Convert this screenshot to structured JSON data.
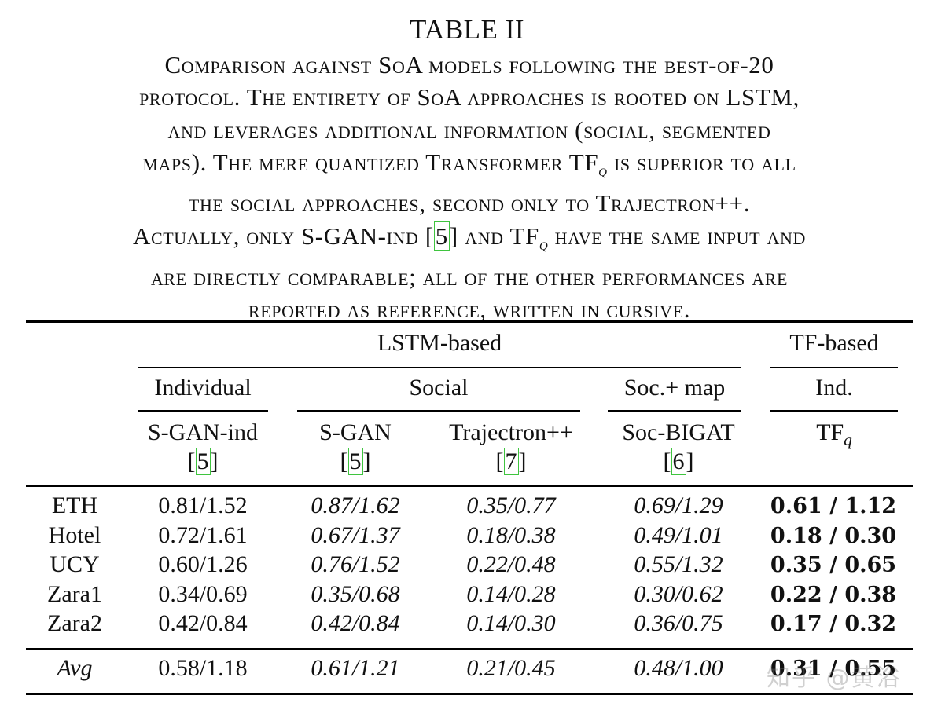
{
  "caption": {
    "title": "TABLE II",
    "lines": [
      "Comparison against SoA models following the best-of-20",
      "protocol. The entirety of SoA approaches is rooted on LSTM,",
      "and leverages additional information (social, segmented",
      "maps). The mere quantized Transformer TF_q is superior to all",
      "the social approaches, second only to Trajectron++.",
      "Actually, only S-GAN-ind [5] and TF_q have the same input and",
      "are directly comparable; all of the other performances are",
      "reported as reference, written in cursive."
    ],
    "line3_prefix": "maps). The mere quantized Transformer TF",
    "line3_suffix": " is superior to all",
    "line5_prefix": "Actually, only S-GAN-ind ",
    "line5_ref": "5",
    "line5_mid": " and TF",
    "line5_suffix": " have the same input and",
    "subscript": "q"
  },
  "header": {
    "group_lstm": "LSTM-based",
    "group_tf": "TF-based",
    "sub_individual": "Individual",
    "sub_social": "Social",
    "sub_socmap": "Soc.+ map",
    "sub_ind": "Ind.",
    "models": [
      {
        "name": "S-GAN-ind",
        "ref": "5"
      },
      {
        "name": "S-GAN",
        "ref": "5"
      },
      {
        "name": "Trajectron++",
        "ref": "7"
      },
      {
        "name": "Soc-BIGAT",
        "ref": "6"
      }
    ],
    "tf_model": "TF",
    "tf_sub": "q"
  },
  "rows": [
    {
      "label": "ETH",
      "values": [
        "0.81/1.52",
        "0.87/1.62",
        "0.35/0.77",
        "0.69/1.29",
        "0.61 / 1.12"
      ]
    },
    {
      "label": "Hotel",
      "values": [
        "0.72/1.61",
        "0.67/1.37",
        "0.18/0.38",
        "0.49/1.01",
        "0.18 / 0.30"
      ]
    },
    {
      "label": "UCY",
      "values": [
        "0.60/1.26",
        "0.76/1.52",
        "0.22/0.48",
        "0.55/1.32",
        "0.35 / 0.65"
      ]
    },
    {
      "label": "Zara1",
      "values": [
        "0.34/0.69",
        "0.35/0.68",
        "0.14/0.28",
        "0.30/0.62",
        "0.22 / 0.38"
      ]
    },
    {
      "label": "Zara2",
      "values": [
        "0.42/0.84",
        "0.42/0.84",
        "0.14/0.30",
        "0.36/0.75",
        "0.17 / 0.32"
      ]
    }
  ],
  "avg": {
    "label": "Avg",
    "values": [
      "0.58/1.18",
      "0.61/1.21",
      "0.21/0.45",
      "0.48/1.00",
      "0.31 / 0.55"
    ]
  },
  "watermark": "知乎 @黄浴"
}
